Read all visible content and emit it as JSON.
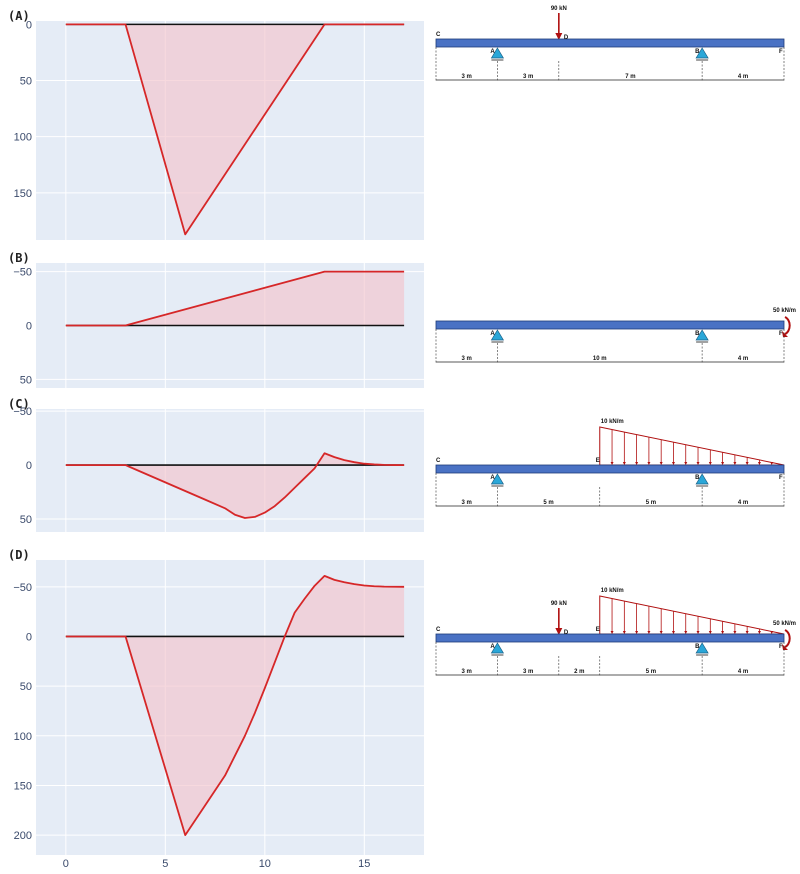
{
  "chart_data": [
    {
      "label": "(A)",
      "type": "area",
      "y_inverted": true,
      "ylim": [
        -3,
        192
      ],
      "yticks": [
        0,
        50,
        100,
        150
      ],
      "xlim": [
        -1.5,
        18
      ],
      "grid": true,
      "series": [
        {
          "x": [
            0,
            3,
            6,
            13,
            17
          ],
          "y": [
            0,
            0,
            187,
            0,
            0
          ]
        }
      ],
      "beam": {
        "segments": [
          {
            "length": "3 m"
          },
          {
            "length": "3 m"
          },
          {
            "length": "7 m"
          },
          {
            "length": "4 m"
          }
        ],
        "points": [
          {
            "label": "C",
            "pos": 0
          },
          {
            "label": "A",
            "pos": 3
          },
          {
            "label": "D",
            "pos": 6
          },
          {
            "label": "B",
            "pos": 13
          },
          {
            "label": "F",
            "pos": 17
          }
        ],
        "supports": [
          3,
          13
        ],
        "point_loads": [
          {
            "pos": 6,
            "label": "90 kN"
          }
        ],
        "moments": [],
        "distributed": []
      }
    },
    {
      "label": "(B)",
      "type": "area",
      "y_inverted": true,
      "ylim": [
        -58,
        58
      ],
      "yticks": [
        -50,
        0,
        50
      ],
      "xlim": [
        -1.5,
        18
      ],
      "grid": true,
      "series": [
        {
          "x": [
            0,
            3,
            13,
            17
          ],
          "y": [
            0,
            0,
            -50,
            -50
          ]
        }
      ],
      "beam": {
        "segments": [
          {
            "length": "3 m"
          },
          {
            "length": "10 m"
          },
          {
            "length": "4 m"
          }
        ],
        "points": [
          {
            "label": "A",
            "pos": 3
          },
          {
            "label": "B",
            "pos": 13
          },
          {
            "label": "F",
            "pos": 17
          }
        ],
        "supports": [
          3,
          13
        ],
        "point_loads": [],
        "moments": [
          {
            "pos": 17,
            "label": "50 kN/m"
          }
        ],
        "distributed": []
      }
    },
    {
      "label": "(C)",
      "type": "area",
      "y_inverted": true,
      "ylim": [
        -52,
        62
      ],
      "yticks": [
        -50,
        0,
        50
      ],
      "xlim": [
        -1.5,
        18
      ],
      "grid": true,
      "series": [
        {
          "x": [
            0,
            3,
            4,
            5,
            6,
            7,
            8,
            8.5,
            9,
            9.5,
            10,
            10.5,
            11,
            11.5,
            12,
            12.5,
            13,
            13.5,
            14,
            14.5,
            15,
            15.5,
            16,
            16.5,
            17
          ],
          "y": [
            0,
            0,
            8,
            16,
            24,
            32,
            40,
            46,
            49,
            48,
            44,
            38,
            30,
            21,
            12,
            3,
            -11,
            -7.4,
            -4.6,
            -2.7,
            -1.3,
            -0.6,
            -0.2,
            -0.05,
            0
          ]
        }
      ],
      "beam": {
        "segments": [
          {
            "length": "3 m"
          },
          {
            "length": "5 m"
          },
          {
            "length": "5 m"
          },
          {
            "length": "4 m"
          }
        ],
        "points": [
          {
            "label": "C",
            "pos": 0
          },
          {
            "label": "A",
            "pos": 3
          },
          {
            "label": "E",
            "pos": 8
          },
          {
            "label": "B",
            "pos": 13
          },
          {
            "label": "F",
            "pos": 17
          }
        ],
        "supports": [
          3,
          13
        ],
        "point_loads": [],
        "moments": [],
        "distributed": [
          {
            "start": 8,
            "end": 17,
            "label": "10 kN/m"
          }
        ]
      }
    },
    {
      "label": "(D)",
      "type": "area",
      "y_inverted": true,
      "ylim": [
        -77,
        220
      ],
      "yticks": [
        -50,
        0,
        50,
        100,
        150,
        200
      ],
      "xlim": [
        -1.5,
        18
      ],
      "xticks": [
        0,
        5,
        10,
        15
      ],
      "grid": true,
      "series": [
        {
          "x": [
            0,
            3,
            6,
            7,
            8,
            8.5,
            9,
            9.5,
            10,
            10.5,
            11,
            11.5,
            12,
            12.5,
            13,
            13.5,
            14,
            14.5,
            15,
            15.5,
            16,
            16.5,
            17
          ],
          "y": [
            0,
            0,
            200,
            170,
            140,
            120,
            100,
            77,
            52,
            26,
            0,
            -24,
            -38,
            -51,
            -61,
            -57,
            -54.6,
            -52.7,
            -51.3,
            -50.6,
            -50.2,
            -50.05,
            -50
          ]
        }
      ],
      "beam": {
        "segments": [
          {
            "length": "3 m"
          },
          {
            "length": "3 m"
          },
          {
            "length": "2 m"
          },
          {
            "length": "5 m"
          },
          {
            "length": "4 m"
          }
        ],
        "points": [
          {
            "label": "C",
            "pos": 0
          },
          {
            "label": "A",
            "pos": 3
          },
          {
            "label": "D",
            "pos": 6
          },
          {
            "label": "E",
            "pos": 8
          },
          {
            "label": "B",
            "pos": 13
          },
          {
            "label": "F",
            "pos": 17
          }
        ],
        "supports": [
          3,
          13
        ],
        "point_loads": [
          {
            "pos": 6,
            "label": "90 kN"
          }
        ],
        "moments": [
          {
            "pos": 17,
            "label": "50 kN/m"
          }
        ],
        "distributed": [
          {
            "start": 8,
            "end": 17,
            "label": "10 kN/m"
          }
        ]
      }
    }
  ],
  "colors": {
    "plot_bg": "#e5ecf6",
    "grid": "#ffffff",
    "curve": "#d62728",
    "fill": "#f2c4cc",
    "axis_zero": "#111111",
    "beam": "#4a72c4",
    "beam_edge": "#1f3a78",
    "support": "#2aa7d8",
    "load": "#b01010",
    "tick_text": "#3a4a6b"
  }
}
